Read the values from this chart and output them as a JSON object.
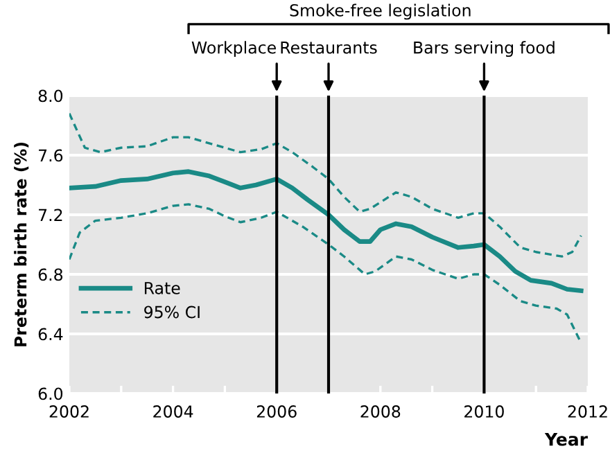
{
  "chart_data": {
    "type": "line",
    "ylabel": "Preterm birth rate (%)",
    "xlabel": "Year",
    "xlim": [
      2002,
      2012
    ],
    "ylim": [
      6.0,
      8.0
    ],
    "xticks": [
      2002,
      {
        "value": 2003,
        "label": null
      },
      2004,
      {
        "value": 2005,
        "label": null
      },
      2006,
      {
        "value": 2007,
        "label": null
      },
      2008,
      {
        "value": 2009,
        "label": null
      },
      2010,
      {
        "value": 2011,
        "label": null
      },
      2012
    ],
    "yticks": [
      {
        "value": 6,
        "label": "6.0"
      },
      6.4,
      6.8,
      7.2,
      7.6,
      {
        "value": 8,
        "label": "8.0"
      }
    ],
    "grid": "y",
    "legend": "bottom left",
    "series": [
      {
        "name": "Rate",
        "color": "#1a8a86",
        "line_style": "solid",
        "x": [
          2002,
          2002.5,
          2003,
          2003.5,
          2004,
          2004.3,
          2004.7,
          2005,
          2005.3,
          2005.6,
          2006,
          2006.3,
          2006.6,
          2007,
          2007.3,
          2007.6,
          2007.8,
          2008,
          2008.3,
          2008.6,
          2009,
          2009.5,
          2009.8,
          2010,
          2010.3,
          2010.6,
          2010.9,
          2011.3,
          2011.6,
          2011.87
        ],
        "values": [
          7.38,
          7.39,
          7.43,
          7.44,
          7.48,
          7.49,
          7.46,
          7.42,
          7.38,
          7.4,
          7.44,
          7.38,
          7.3,
          7.2,
          7.1,
          7.02,
          7.02,
          7.1,
          7.14,
          7.12,
          7.05,
          6.98,
          6.99,
          7.0,
          6.92,
          6.82,
          6.76,
          6.74,
          6.7,
          6.69
        ]
      },
      {
        "name": "95% CI",
        "color": "#1a8a86",
        "line_style": "dashed",
        "x": [
          2002,
          2002.3,
          2002.6,
          2003,
          2003.5,
          2004,
          2004.3,
          2004.7,
          2005.3,
          2005.7,
          2006,
          2006.3,
          2006.7,
          2007,
          2007.3,
          2007.6,
          2007.8,
          2008.3,
          2008.6,
          2009,
          2009.5,
          2009.8,
          2010,
          2010.3,
          2010.7,
          2011,
          2011.5,
          2011.7,
          2011.87
        ],
        "values": [
          7.88,
          7.65,
          7.62,
          7.65,
          7.66,
          7.72,
          7.72,
          7.68,
          7.62,
          7.64,
          7.68,
          7.62,
          7.52,
          7.44,
          7.32,
          7.22,
          7.24,
          7.35,
          7.32,
          7.24,
          7.18,
          7.21,
          7.21,
          7.12,
          6.98,
          6.95,
          6.92,
          6.95,
          7.06
        ]
      },
      {
        "color": "#1a8a86",
        "line_style": "dashed",
        "x": [
          2002,
          2002.2,
          2002.5,
          2003,
          2003.5,
          2004,
          2004.3,
          2004.7,
          2005,
          2005.3,
          2005.7,
          2006,
          2006.5,
          2007,
          2007.3,
          2007.7,
          2007.9,
          2008.3,
          2008.6,
          2009,
          2009.5,
          2009.8,
          2010,
          2010.3,
          2010.7,
          2011,
          2011.4,
          2011.6,
          2011.87
        ],
        "values": [
          6.9,
          7.08,
          7.16,
          7.18,
          7.21,
          7.26,
          7.27,
          7.24,
          7.19,
          7.15,
          7.18,
          7.22,
          7.12,
          7.0,
          6.92,
          6.8,
          6.82,
          6.92,
          6.9,
          6.83,
          6.77,
          6.8,
          6.8,
          6.73,
          6.62,
          6.59,
          6.57,
          6.53,
          6.34
        ]
      }
    ],
    "ref_lines": [
      {
        "axis": "x",
        "value": 2006,
        "label": "Workplace",
        "color": "#000000"
      },
      {
        "axis": "x",
        "value": 2007,
        "label": "Restaurants",
        "color": "#000000"
      },
      {
        "axis": "x",
        "value": 2010,
        "label": "Bars serving food",
        "color": "#000000"
      }
    ],
    "annotations": [
      "Smoke-free legislation"
    ]
  }
}
